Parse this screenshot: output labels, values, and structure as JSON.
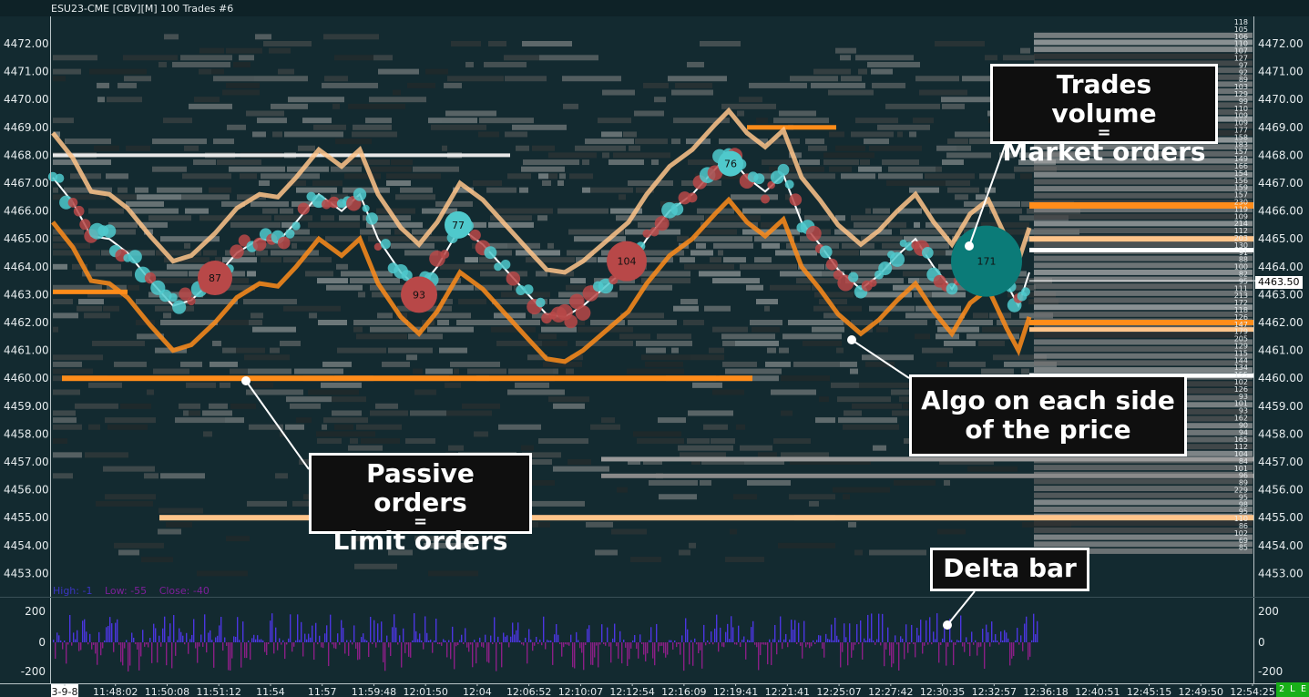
{
  "window": {
    "title": "ESU23-CME [CBV][M]  100 Trades  #6"
  },
  "price_axis": {
    "labels": [
      "4472.00",
      "4471.00",
      "4470.00",
      "4469.00",
      "4468.00",
      "4467.00",
      "4466.00",
      "4465.00",
      "4464.00",
      "4463.00",
      "4462.00",
      "4461.00",
      "4460.00",
      "4459.00",
      "4458.00",
      "4457.00",
      "4456.00",
      "4455.00",
      "4454.00",
      "4453.00"
    ],
    "current_price": "4463.50"
  },
  "delta_axis": {
    "labels": [
      "200",
      "0",
      "-200"
    ]
  },
  "time_axis": {
    "labels": [
      "3-9-8",
      "11:48:02",
      "11:50:08",
      "11:51:12",
      "11:54",
      "11:57",
      "11:59:48",
      "12:01:50",
      "12:04",
      "12:06:52",
      "12:10:07",
      "12:12:54",
      "12:16:09",
      "12:19:41",
      "12:21:41",
      "12:25:07",
      "12:27:42",
      "12:30:35",
      "12:32:57",
      "12:36:18",
      "12:40:51",
      "12:45:15",
      "12:49:50",
      "12:54:25"
    ]
  },
  "delta_summary": {
    "high": "High: -1",
    "low": "Low: -55",
    "close": "Close: -40"
  },
  "ladder_numbers": [
    "118",
    "105",
    "106",
    "110",
    "107",
    "127",
    "97",
    "92",
    "89",
    "103",
    "129",
    "99",
    "110",
    "109",
    "109",
    "177",
    "158",
    "183",
    "157",
    "149",
    "166",
    "154",
    "156",
    "159",
    "157",
    "230",
    "119",
    "109",
    "214",
    "112",
    "203",
    "130",
    "91",
    "88",
    "100",
    "82",
    "95",
    "111",
    "213",
    "172",
    "118",
    "126",
    "147",
    "179",
    "205",
    "129",
    "115",
    "144",
    "134",
    "155",
    "102",
    "126",
    "93",
    "101",
    "93",
    "162",
    "90",
    "94",
    "165",
    "112",
    "104",
    "84",
    "101",
    "96",
    "89",
    "229",
    "95",
    "98",
    "95",
    "110",
    "86",
    "102",
    "69",
    "85"
  ],
  "trade_bubbles": [
    {
      "label": "87",
      "side": "sell"
    },
    {
      "label": "93",
      "side": "sell"
    },
    {
      "label": "77",
      "side": "buy"
    },
    {
      "label": "104",
      "side": "sell"
    },
    {
      "label": "76",
      "side": "buy"
    },
    {
      "label": "171",
      "side": "buy-large"
    }
  ],
  "callouts": {
    "trades_volume": {
      "line1": "Trades volume",
      "eq": "=",
      "line2": "Market orders"
    },
    "passive_orders": {
      "line1": "Passive orders",
      "eq": "=",
      "line2": "Limit orders"
    },
    "algo": {
      "line1": "Algo on each side",
      "line2": "of the price"
    },
    "delta_bar": {
      "line1": "Delta bar"
    }
  },
  "status_badge": "2 L E",
  "colors": {
    "background": "#132a30",
    "buy_bubble": "#4fc9cc",
    "sell_bubble": "#b84848",
    "large_bubble": "#0b7b78",
    "orange_level": "#ff8c1a",
    "light_orange_level": "#ffc48a",
    "delta_positive": "#4b36e0",
    "delta_negative": "#8a1f86",
    "hlc_high": "#3b34c2",
    "hlc_low": "#7e1f9a",
    "hlc_close": "#7e1f9a"
  }
}
